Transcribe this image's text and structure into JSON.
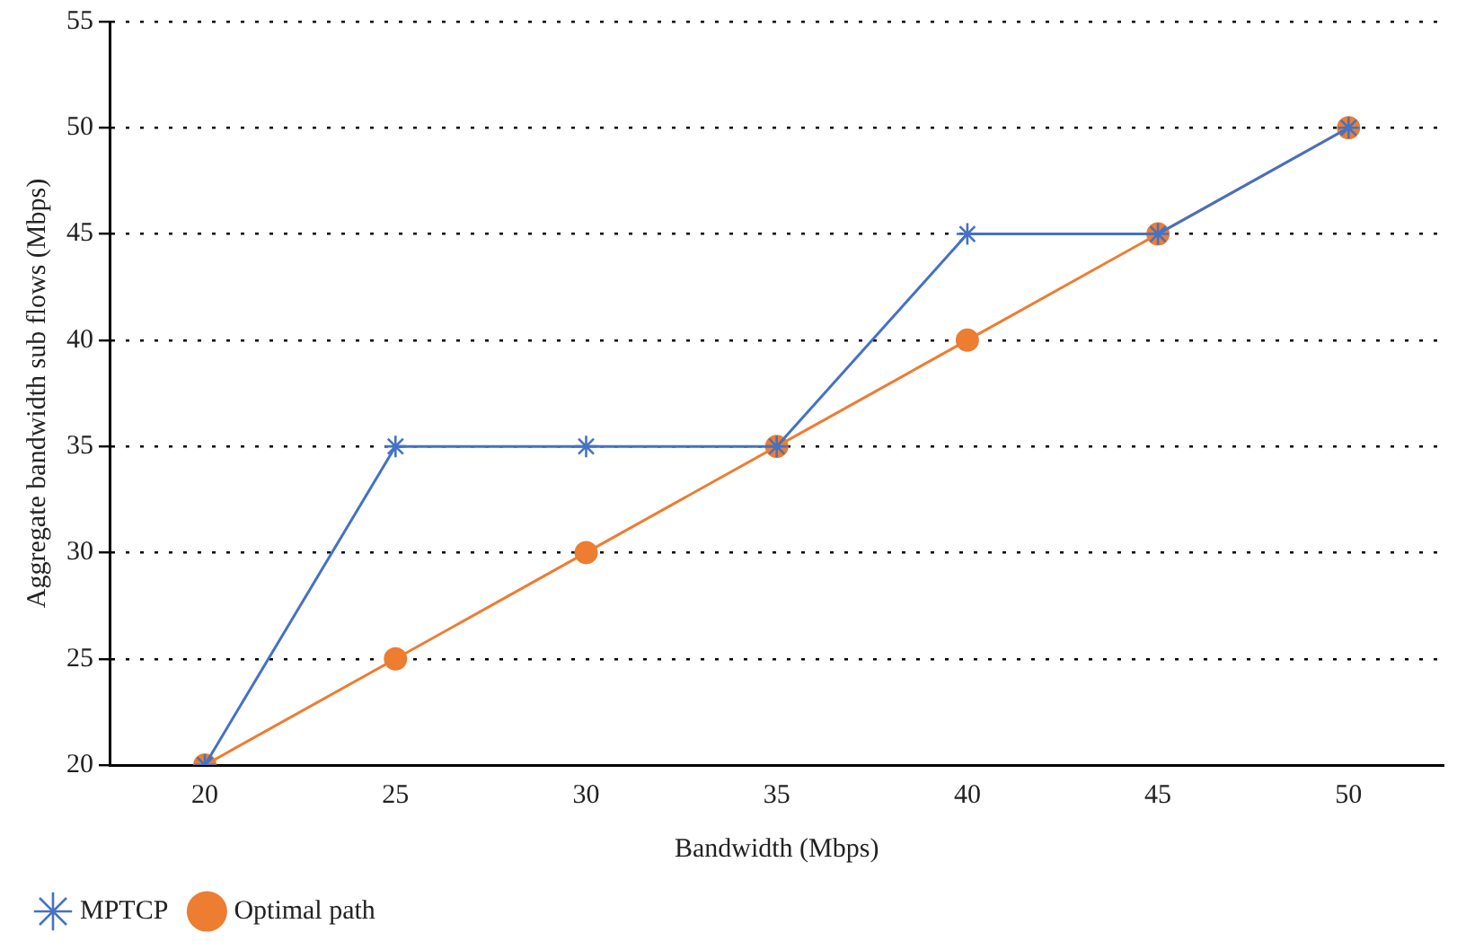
{
  "chart_data": {
    "type": "line",
    "xlabel": "Bandwidth (Mbps)",
    "ylabel": "Aggregate bandwidth sub flows (Mbps)",
    "categories": [
      "20",
      "25",
      "30",
      "35",
      "40",
      "45",
      "50"
    ],
    "series": [
      {
        "name": "MPTCP",
        "color": "#4472c4",
        "marker": "cross",
        "values": [
          20,
          35,
          35,
          35,
          45,
          45,
          50
        ]
      },
      {
        "name": "Optimal path",
        "color": "#ed7d31",
        "marker": "circle",
        "values": [
          20,
          25,
          30,
          35,
          40,
          45,
          50
        ]
      }
    ],
    "ylim": [
      20,
      55
    ],
    "yticks": [
      20,
      25,
      30,
      35,
      40,
      45,
      50,
      55
    ],
    "grid": "y",
    "legend": "bottom left",
    "line_style": "solid"
  }
}
